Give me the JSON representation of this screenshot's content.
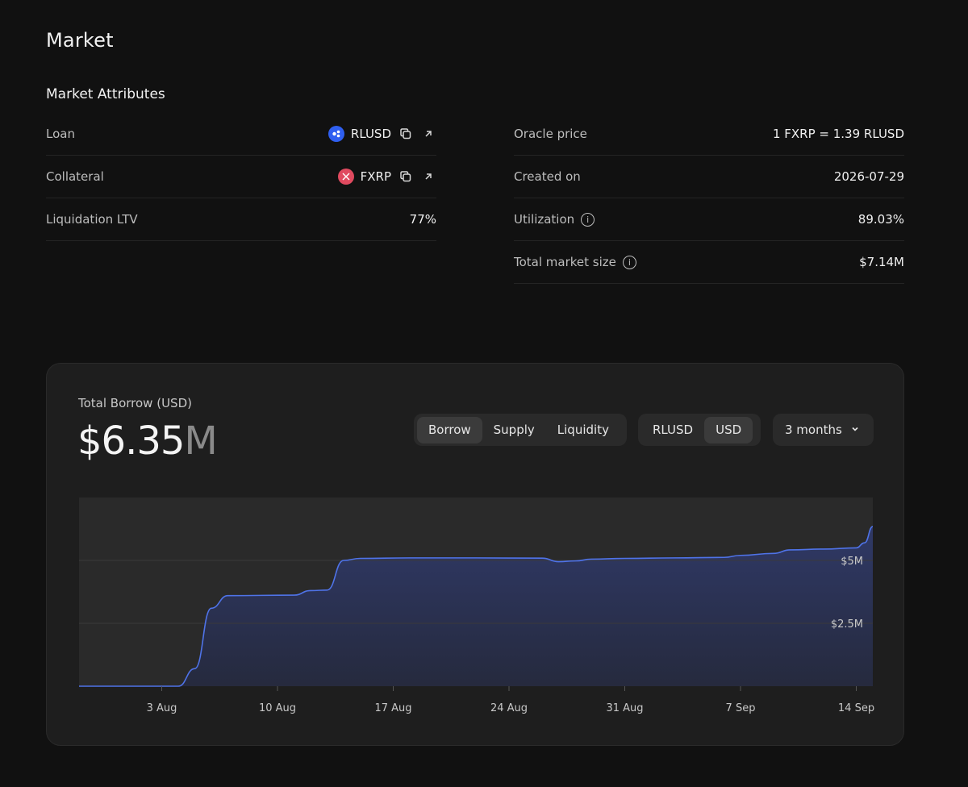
{
  "page": {
    "title": "Market"
  },
  "attributes": {
    "title": "Market Attributes",
    "left": [
      {
        "label": "Loan",
        "token": "RLUSD"
      },
      {
        "label": "Collateral",
        "token": "FXRP"
      },
      {
        "label": "Liquidation LTV",
        "value": "77%"
      }
    ],
    "right": [
      {
        "label": "Oracle price",
        "value": "1 FXRP = 1.39 RLUSD"
      },
      {
        "label": "Created on",
        "value": "2026-07-29"
      },
      {
        "label": "Utilization",
        "value": "89.03%"
      },
      {
        "label": "Total market size",
        "value": "$7.14M"
      }
    ]
  },
  "chart_card": {
    "label": "Total Borrow (USD)",
    "value_number": "$6.35",
    "value_unit": "M",
    "metric_tabs": [
      "Borrow",
      "Supply",
      "Liquidity"
    ],
    "metric_active": "Borrow",
    "currency_tabs": [
      "RLUSD",
      "USD"
    ],
    "currency_active": "USD",
    "range_select": "3 months"
  },
  "colors": {
    "line": "#4f73e8",
    "fill_top": "#303a6a",
    "background": "#111111",
    "card": "#1e1e1e"
  },
  "chart_data": {
    "type": "area",
    "title": "",
    "xlabel": "",
    "ylabel": "",
    "x_ticks": [
      "3 Aug",
      "10 Aug",
      "17 Aug",
      "24 Aug",
      "31 Aug",
      "7 Sep",
      "14 Sep"
    ],
    "y_ticks": [
      "$2.5M",
      "$5M"
    ],
    "ylim": [
      0,
      7.5
    ],
    "xlim": [
      "2026-07-29",
      "2026-09-15"
    ],
    "grid": true,
    "series": [
      {
        "points": [
          [
            "2026-07-29",
            0
          ],
          [
            "2026-08-04",
            0
          ],
          [
            "2026-08-05",
            0.7
          ],
          [
            "2026-08-06",
            3.1
          ],
          [
            "2026-08-07",
            3.6
          ],
          [
            "2026-08-11",
            3.62
          ],
          [
            "2026-08-12",
            3.8
          ],
          [
            "2026-08-13",
            3.82
          ],
          [
            "2026-08-14",
            5.0
          ],
          [
            "2026-08-15",
            5.08
          ],
          [
            "2026-08-18",
            5.1
          ],
          [
            "2026-08-22",
            5.1
          ],
          [
            "2026-08-26",
            5.09
          ],
          [
            "2026-08-27",
            4.95
          ],
          [
            "2026-08-28",
            4.98
          ],
          [
            "2026-08-29",
            5.05
          ],
          [
            "2026-08-31",
            5.08
          ],
          [
            "2026-09-03",
            5.1
          ],
          [
            "2026-09-06",
            5.12
          ],
          [
            "2026-09-07",
            5.2
          ],
          [
            "2026-09-09",
            5.28
          ],
          [
            "2026-09-10",
            5.42
          ],
          [
            "2026-09-12",
            5.45
          ],
          [
            "2026-09-14",
            5.5
          ],
          [
            "2026-09-14T12",
            5.7
          ],
          [
            "2026-09-15",
            6.35
          ]
        ]
      }
    ]
  }
}
